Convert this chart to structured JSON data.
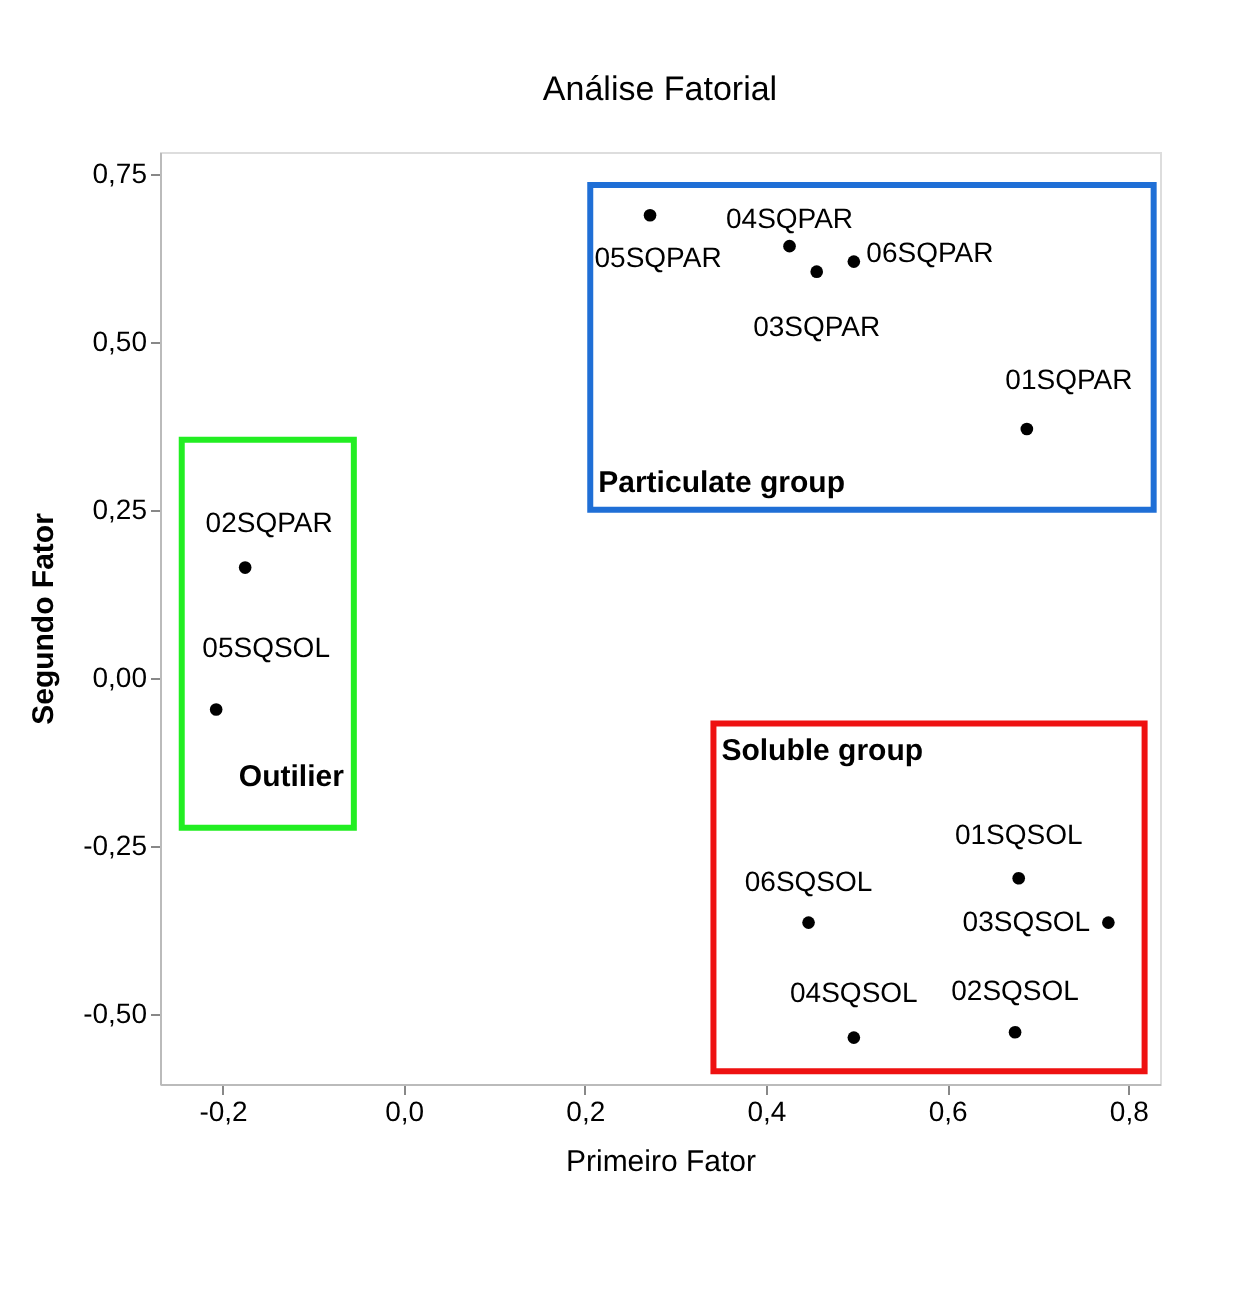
{
  "chart_data": {
    "type": "scatter",
    "title": "Análise Fatorial",
    "xlabel": "Primeiro Fator",
    "ylabel": "Segundo Fator",
    "xlim": [
      -0.269,
      0.835
    ],
    "xticks": [
      {
        "value": -0.2,
        "label": "-0,2"
      },
      {
        "value": 0.0,
        "label": "0,0"
      },
      {
        "value": 0.2,
        "label": "0,2"
      },
      {
        "value": 0.4,
        "label": "0,4"
      },
      {
        "value": 0.6,
        "label": "0,6"
      },
      {
        "value": 0.8,
        "label": "0,8"
      }
    ],
    "ylim": [
      -0.604,
      0.782
    ],
    "yticks": [
      {
        "value": -0.5,
        "label": "-0,50"
      },
      {
        "value": -0.25,
        "label": "-0,25"
      },
      {
        "value": 0.0,
        "label": "0,00"
      },
      {
        "value": 0.25,
        "label": "0,25"
      },
      {
        "value": 0.5,
        "label": "0,50"
      },
      {
        "value": 0.75,
        "label": "0,75"
      }
    ],
    "grid": false,
    "marker": "circle",
    "series": [
      {
        "color": "#000000",
        "x": [
          0.272,
          0.426,
          0.456,
          0.497,
          0.688
        ],
        "values": [
          0.688,
          0.642,
          0.604,
          0.619,
          0.37
        ]
      },
      {
        "color": "#000000",
        "x": [
          -0.175,
          -0.207
        ],
        "values": [
          0.164,
          -0.047
        ]
      },
      {
        "color": "#000000",
        "x": [
          0.447,
          0.679,
          0.778,
          0.497,
          0.675
        ],
        "values": [
          -0.364,
          -0.298,
          -0.364,
          -0.535,
          -0.527
        ]
      }
    ],
    "annotations": [
      {
        "text": "05SQPAR",
        "x": 0.272,
        "y": 0.688
      },
      {
        "text": "04SQPAR",
        "x": 0.426,
        "y": 0.642
      },
      {
        "text": "03SQPAR",
        "x": 0.456,
        "y": 0.604
      },
      {
        "text": "06SQPAR",
        "x": 0.497,
        "y": 0.619
      },
      {
        "text": "01SQPAR",
        "x": 0.688,
        "y": 0.37
      },
      {
        "text": "02SQPAR",
        "x": -0.175,
        "y": 0.164
      },
      {
        "text": "05SQSOL",
        "x": -0.207,
        "y": -0.047
      },
      {
        "text": "06SQSOL",
        "x": 0.447,
        "y": -0.364
      },
      {
        "text": "01SQSOL",
        "x": 0.679,
        "y": -0.298
      },
      {
        "text": "03SQSOL",
        "x": 0.778,
        "y": -0.364
      },
      {
        "text": "04SQSOL",
        "x": 0.497,
        "y": -0.535
      },
      {
        "text": "02SQSOL",
        "x": 0.675,
        "y": -0.527
      },
      "Particulate group",
      "Outilier",
      "Soluble group"
    ]
  }
}
